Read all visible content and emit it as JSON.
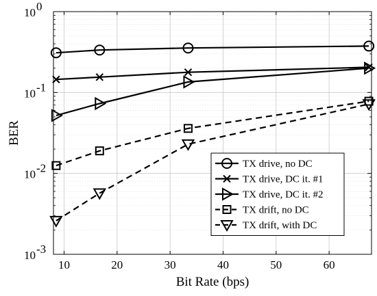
{
  "chart_data": {
    "type": "line",
    "xlabel": "Bit Rate (bps)",
    "ylabel": "BER",
    "xlim": [
      8,
      68
    ],
    "ylim": [
      0.001,
      1
    ],
    "yscale": "log",
    "xticks": [
      10,
      20,
      30,
      40,
      50,
      60
    ],
    "yticks": [
      {
        "value": 0.001,
        "base": "10",
        "exp": "-3"
      },
      {
        "value": 0.01,
        "base": "10",
        "exp": "-2"
      },
      {
        "value": 0.1,
        "base": "10",
        "exp": "-1"
      },
      {
        "value": 1,
        "base": "10",
        "exp": "0"
      }
    ],
    "grid": true,
    "legend_position": "bottom-right",
    "x": [
      8.5,
      16.7,
      33.4,
      67.5
    ],
    "series": [
      {
        "name": "TX drive, no DC",
        "values": [
          0.31,
          0.335,
          0.355,
          0.375
        ],
        "marker": "circle",
        "dash": "solid"
      },
      {
        "name": "TX drive, DC it. #1",
        "values": [
          0.145,
          0.155,
          0.178,
          0.205
        ],
        "marker": "x",
        "dash": "solid"
      },
      {
        "name": "TX drive, DC it. #2",
        "values": [
          0.052,
          0.073,
          0.135,
          0.2
        ],
        "marker": "triangle-right",
        "dash": "solid"
      },
      {
        "name": "TX drift, no DC",
        "values": [
          0.0125,
          0.019,
          0.036,
          0.078
        ],
        "marker": "square",
        "dash": "dashed"
      },
      {
        "name": "TX drift, with DC",
        "values": [
          0.0026,
          0.0057,
          0.023,
          0.072
        ],
        "marker": "triangle-down",
        "dash": "dashed"
      }
    ]
  }
}
